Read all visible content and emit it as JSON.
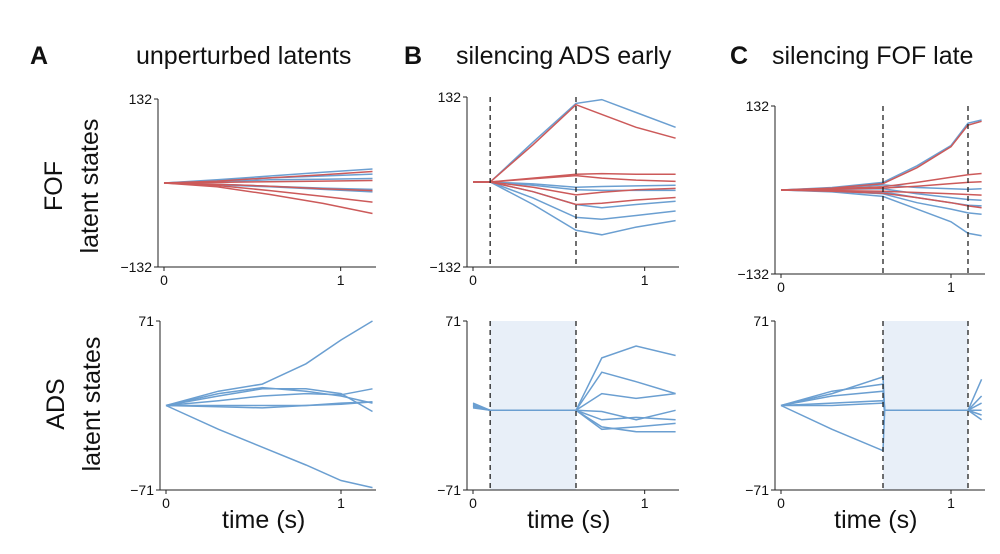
{
  "colors": {
    "blue": "#6b9fd1",
    "red": "#cc5a5a",
    "shade": "#e8eff8"
  },
  "chart_data": [
    {
      "type": "line",
      "panel": "A",
      "row": "FOF",
      "title": "unperturbed latents",
      "ylim": [
        -132,
        132
      ],
      "ytick_labels": [
        "132",
        "−132"
      ],
      "xlim": [
        0,
        1.2
      ],
      "xtick_labels": [
        "0",
        "1"
      ],
      "ylabel": [
        "FOF",
        "latent states"
      ],
      "xlabel": "",
      "dashed_x": [],
      "shade": null,
      "series": [
        {
          "color": "blue",
          "x": [
            0,
            0.3,
            0.6,
            0.9,
            1.18
          ],
          "y": [
            0,
            5,
            11,
            17,
            22
          ]
        },
        {
          "color": "blue",
          "x": [
            0,
            0.3,
            0.6,
            0.9,
            1.18
          ],
          "y": [
            0,
            4,
            8,
            11,
            14
          ]
        },
        {
          "color": "blue",
          "x": [
            0,
            0.3,
            0.6,
            0.9,
            1.18
          ],
          "y": [
            0,
            2,
            5,
            6,
            7
          ]
        },
        {
          "color": "blue",
          "x": [
            0,
            0.3,
            0.6,
            0.9,
            1.18
          ],
          "y": [
            0,
            -2,
            -5,
            -8,
            -10
          ]
        },
        {
          "color": "blue",
          "x": [
            0,
            0.3,
            0.6,
            0.9,
            1.18
          ],
          "y": [
            0,
            -3,
            -6,
            -10,
            -14
          ]
        },
        {
          "color": "red",
          "x": [
            0,
            0.3,
            0.6,
            0.9,
            1.18
          ],
          "y": [
            0,
            3,
            8,
            13,
            18
          ]
        },
        {
          "color": "red",
          "x": [
            0,
            0.3,
            0.6,
            0.9,
            1.18
          ],
          "y": [
            0,
            1,
            2,
            3,
            4
          ]
        },
        {
          "color": "red",
          "x": [
            0,
            0.3,
            0.6,
            0.9,
            1.18
          ],
          "y": [
            0,
            -2,
            -5,
            -9,
            -12
          ]
        },
        {
          "color": "red",
          "x": [
            0,
            0.3,
            0.6,
            0.9,
            1.18
          ],
          "y": [
            0,
            -4,
            -12,
            -21,
            -30
          ]
        },
        {
          "color": "red",
          "x": [
            0,
            0.3,
            0.6,
            0.9,
            1.18
          ],
          "y": [
            0,
            -6,
            -18,
            -32,
            -48
          ]
        }
      ]
    },
    {
      "type": "line",
      "panel": "B",
      "row": "FOF",
      "title": "silencing ADS early",
      "ylim": [
        -132,
        132
      ],
      "ytick_labels": [
        "132",
        "−132"
      ],
      "xlim": [
        0,
        1.2
      ],
      "xtick_labels": [
        "0",
        "1"
      ],
      "ylabel": [],
      "xlabel": "",
      "dashed_x": [
        0.1,
        0.6
      ],
      "shade": null,
      "series": [
        {
          "color": "blue",
          "x": [
            0,
            0.1,
            0.35,
            0.6,
            0.75,
            0.95,
            1.18
          ],
          "y": [
            0,
            0,
            62,
            122,
            128,
            108,
            85
          ]
        },
        {
          "color": "blue",
          "x": [
            0,
            0.1,
            0.35,
            0.6,
            0.75,
            0.95,
            1.18
          ],
          "y": [
            0,
            0,
            -3,
            -8,
            -7,
            -6,
            -5
          ]
        },
        {
          "color": "blue",
          "x": [
            0,
            0.1,
            0.35,
            0.6,
            0.75,
            0.95,
            1.18
          ],
          "y": [
            0,
            0,
            -5,
            -12,
            -13,
            -13,
            -13
          ]
        },
        {
          "color": "blue",
          "x": [
            0,
            0.1,
            0.35,
            0.6,
            0.75,
            0.95,
            1.18
          ],
          "y": [
            0,
            0,
            -15,
            -35,
            -40,
            -35,
            -30
          ]
        },
        {
          "color": "blue",
          "x": [
            0,
            0.1,
            0.35,
            0.6,
            0.75,
            0.95,
            1.18
          ],
          "y": [
            0,
            0,
            -25,
            -55,
            -58,
            -52,
            -45
          ]
        },
        {
          "color": "blue",
          "x": [
            0,
            0.1,
            0.35,
            0.6,
            0.75,
            0.95,
            1.18
          ],
          "y": [
            0,
            0,
            -35,
            -75,
            -82,
            -70,
            -60
          ]
        },
        {
          "color": "red",
          "x": [
            0,
            0.1,
            0.35,
            0.6,
            0.75,
            0.95,
            1.18
          ],
          "y": [
            0,
            0,
            58,
            120,
            105,
            85,
            68
          ]
        },
        {
          "color": "red",
          "x": [
            0,
            0.1,
            0.35,
            0.6,
            0.75,
            0.95,
            1.18
          ],
          "y": [
            0,
            0,
            6,
            12,
            13,
            12,
            12
          ]
        },
        {
          "color": "red",
          "x": [
            0,
            0.1,
            0.35,
            0.6,
            0.75,
            0.95,
            1.18
          ],
          "y": [
            0,
            0,
            5,
            10,
            6,
            3,
            1
          ]
        },
        {
          "color": "red",
          "x": [
            0,
            0.1,
            0.35,
            0.6,
            0.75,
            0.95,
            1.18
          ],
          "y": [
            0,
            0,
            -8,
            -20,
            -16,
            -12,
            -10
          ]
        },
        {
          "color": "red",
          "x": [
            0,
            0.1,
            0.35,
            0.6,
            0.75,
            0.95,
            1.18
          ],
          "y": [
            0,
            0,
            -15,
            -35,
            -33,
            -28,
            -24
          ]
        }
      ]
    },
    {
      "type": "line",
      "panel": "C",
      "row": "FOF",
      "title": "silencing FOF late",
      "ylim": [
        -132,
        132
      ],
      "ytick_labels": [
        "132",
        "−132"
      ],
      "xlim": [
        0,
        1.2
      ],
      "xtick_labels": [
        "0",
        "1"
      ],
      "ylabel": [],
      "xlabel": "",
      "dashed_x": [
        0.6,
        1.1
      ],
      "shade": null,
      "series": [
        {
          "color": "blue",
          "x": [
            0,
            0.3,
            0.6,
            0.8,
            1.0,
            1.1,
            1.18
          ],
          "y": [
            0,
            4,
            12,
            38,
            70,
            105,
            110
          ]
        },
        {
          "color": "blue",
          "x": [
            0,
            0.3,
            0.6,
            0.8,
            1.0,
            1.1,
            1.18
          ],
          "y": [
            0,
            3,
            8,
            4,
            2,
            1,
            2
          ]
        },
        {
          "color": "blue",
          "x": [
            0,
            0.3,
            0.6,
            0.8,
            1.0,
            1.1,
            1.18
          ],
          "y": [
            0,
            1,
            2,
            -6,
            -12,
            -15,
            -16
          ]
        },
        {
          "color": "blue",
          "x": [
            0,
            0.3,
            0.6,
            0.8,
            1.0,
            1.1,
            1.18
          ],
          "y": [
            0,
            -1,
            -3,
            -12,
            -20,
            -24,
            -25
          ]
        },
        {
          "color": "blue",
          "x": [
            0,
            0.3,
            0.6,
            0.8,
            1.0,
            1.1,
            1.18
          ],
          "y": [
            0,
            -2,
            -6,
            -20,
            -30,
            -36,
            -38
          ]
        },
        {
          "color": "blue",
          "x": [
            0,
            0.3,
            0.6,
            0.8,
            1.0,
            1.1,
            1.18
          ],
          "y": [
            0,
            -3,
            -10,
            -30,
            -50,
            -68,
            -72
          ]
        },
        {
          "color": "red",
          "x": [
            0,
            0.3,
            0.6,
            0.8,
            1.0,
            1.1,
            1.18
          ],
          "y": [
            0,
            3,
            10,
            35,
            68,
            102,
            108
          ]
        },
        {
          "color": "red",
          "x": [
            0,
            0.3,
            0.6,
            0.8,
            1.0,
            1.1,
            1.18
          ],
          "y": [
            0,
            2,
            5,
            12,
            20,
            24,
            26
          ]
        },
        {
          "color": "red",
          "x": [
            0,
            0.3,
            0.6,
            0.8,
            1.0,
            1.1,
            1.18
          ],
          "y": [
            0,
            1,
            3,
            6,
            10,
            12,
            13
          ]
        },
        {
          "color": "red",
          "x": [
            0,
            0.3,
            0.6,
            0.8,
            1.0,
            1.1,
            1.18
          ],
          "y": [
            0,
            -1,
            -2,
            -4,
            -6,
            -7,
            -8
          ]
        },
        {
          "color": "red",
          "x": [
            0,
            0.3,
            0.6,
            0.8,
            1.0,
            1.1,
            1.18
          ],
          "y": [
            0,
            -2,
            -5,
            -12,
            -20,
            -25,
            -28
          ]
        }
      ]
    },
    {
      "type": "line",
      "panel": "A",
      "row": "ADS",
      "ylim": [
        -71,
        71
      ],
      "ytick_labels": [
        "71",
        "−71"
      ],
      "xlim": [
        0,
        1.2
      ],
      "xtick_labels": [
        "0",
        "1"
      ],
      "ylabel": [
        "ADS",
        "latent states"
      ],
      "xlabel": "time (s)",
      "dashed_x": [],
      "shade": null,
      "series": [
        {
          "color": "blue",
          "x": [
            0,
            0.3,
            0.55,
            0.8,
            1.0,
            1.18
          ],
          "y": [
            0,
            12,
            18,
            35,
            55,
            71
          ]
        },
        {
          "color": "blue",
          "x": [
            0,
            0.3,
            0.55,
            0.8,
            1.0,
            1.18
          ],
          "y": [
            0,
            -20,
            -35,
            -50,
            -63,
            -69
          ]
        },
        {
          "color": "blue",
          "x": [
            0,
            0.3,
            0.55,
            0.8,
            1.0,
            1.18
          ],
          "y": [
            0,
            10,
            15,
            12,
            8,
            2
          ]
        },
        {
          "color": "blue",
          "x": [
            0,
            0.3,
            0.55,
            0.8,
            1.0,
            1.18
          ],
          "y": [
            0,
            8,
            14,
            14,
            10,
            -5
          ]
        },
        {
          "color": "blue",
          "x": [
            0,
            0.3,
            0.55,
            0.8,
            1.0,
            1.18
          ],
          "y": [
            0,
            4,
            8,
            10,
            9,
            14
          ]
        },
        {
          "color": "blue",
          "x": [
            0,
            0.3,
            0.55,
            0.8,
            1.0,
            1.18
          ],
          "y": [
            0,
            0,
            0,
            0,
            2,
            3
          ]
        },
        {
          "color": "blue",
          "x": [
            0,
            0.3,
            0.55,
            0.8,
            1.0,
            1.18
          ],
          "y": [
            0,
            -1,
            -2,
            0,
            1,
            3
          ]
        }
      ]
    },
    {
      "type": "line",
      "panel": "B",
      "row": "ADS",
      "ylim": [
        -71,
        71
      ],
      "ytick_labels": [
        "71",
        "−71"
      ],
      "xlim": [
        0,
        1.2
      ],
      "xtick_labels": [
        "0",
        "1"
      ],
      "ylabel": [],
      "xlabel": "time (s)",
      "dashed_x": [
        0.1,
        0.6
      ],
      "shade": [
        0.1,
        0.6
      ],
      "series": [
        {
          "color": "blue",
          "x": [
            0,
            0.1,
            0.6,
            0.75,
            0.95,
            1.18
          ],
          "y": [
            2,
            -4,
            -4,
            40,
            50,
            42
          ]
        },
        {
          "color": "blue",
          "x": [
            0,
            0.1,
            0.6,
            0.75,
            0.95,
            1.18
          ],
          "y": [
            -1,
            -4,
            -4,
            28,
            20,
            10
          ]
        },
        {
          "color": "blue",
          "x": [
            0,
            0.1,
            0.6,
            0.75,
            0.95,
            1.18
          ],
          "y": [
            0,
            -4,
            -4,
            10,
            6,
            10
          ]
        },
        {
          "color": "blue",
          "x": [
            0,
            0.1,
            0.6,
            0.75,
            0.95,
            1.18
          ],
          "y": [
            1,
            -4,
            -4,
            -5,
            -12,
            -4
          ]
        },
        {
          "color": "blue",
          "x": [
            0,
            0.1,
            0.6,
            0.75,
            0.95,
            1.18
          ],
          "y": [
            -2,
            -4,
            -4,
            -12,
            -10,
            -12
          ]
        },
        {
          "color": "blue",
          "x": [
            0,
            0.1,
            0.6,
            0.75,
            0.95,
            1.18
          ],
          "y": [
            0,
            -4,
            -4,
            -18,
            -22,
            -22
          ]
        },
        {
          "color": "blue",
          "x": [
            0,
            0.1,
            0.6,
            0.75,
            0.95,
            1.18
          ],
          "y": [
            0,
            -4,
            -4,
            -20,
            -18,
            -15
          ]
        }
      ]
    },
    {
      "type": "line",
      "panel": "C",
      "row": "ADS",
      "ylim": [
        -71,
        71
      ],
      "ytick_labels": [
        "71",
        "−71"
      ],
      "xlim": [
        0,
        1.2
      ],
      "xtick_labels": [
        "0",
        "1"
      ],
      "ylabel": [],
      "xlabel": "time (s)",
      "dashed_x": [
        0.6,
        1.1
      ],
      "shade": [
        0.6,
        1.1
      ],
      "series": [
        {
          "color": "blue",
          "x": [
            0,
            0.3,
            0.6,
            0.61,
            1.1,
            1.18
          ],
          "y": [
            0,
            10,
            24,
            -4,
            -4,
            22
          ]
        },
        {
          "color": "blue",
          "x": [
            0,
            0.3,
            0.6,
            0.61,
            1.1,
            1.18
          ],
          "y": [
            0,
            -20,
            -38,
            -4,
            -4,
            -12
          ]
        },
        {
          "color": "blue",
          "x": [
            0,
            0.3,
            0.6,
            0.61,
            1.1,
            1.18
          ],
          "y": [
            0,
            12,
            18,
            -4,
            -4,
            8
          ]
        },
        {
          "color": "blue",
          "x": [
            0,
            0.3,
            0.6,
            0.61,
            1.1,
            1.18
          ],
          "y": [
            0,
            8,
            12,
            -4,
            -4,
            -4
          ]
        },
        {
          "color": "blue",
          "x": [
            0,
            0.3,
            0.6,
            0.61,
            1.1,
            1.18
          ],
          "y": [
            0,
            2,
            4,
            -4,
            -4,
            2
          ]
        },
        {
          "color": "blue",
          "x": [
            0,
            0.3,
            0.6,
            0.61,
            1.1,
            1.18
          ],
          "y": [
            0,
            0,
            2,
            -4,
            -4,
            -8
          ]
        }
      ]
    }
  ],
  "panel_headers": [
    {
      "letter": "A",
      "title": "unperturbed latents"
    },
    {
      "letter": "B",
      "title": "silencing ADS early"
    },
    {
      "letter": "C",
      "title": "silencing FOF late"
    }
  ]
}
